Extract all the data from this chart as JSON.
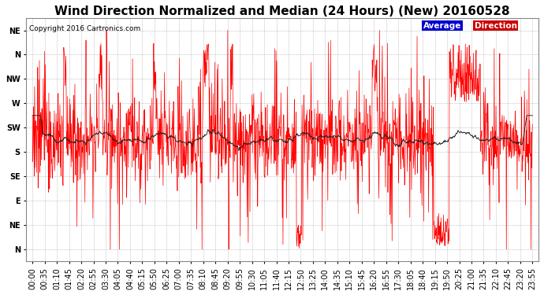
{
  "title": "Wind Direction Normalized and Median (24 Hours) (New) 20160528",
  "copyright": "Copyright 2016 Cartronics.com",
  "ytick_labels": [
    "NE",
    "N",
    "NW",
    "W",
    "SW",
    "S",
    "SE",
    "E",
    "NE",
    "N"
  ],
  "ytick_values": [
    1,
    2,
    3,
    4,
    5,
    6,
    7,
    8,
    9,
    10
  ],
  "ylim": [
    10.5,
    0.5
  ],
  "background_color": "#ffffff",
  "plot_bg_color": "#ffffff",
  "grid_color": "#aaaaaa",
  "direction_color": "#ff0000",
  "average_color": "#1a1a1a",
  "title_fontsize": 11,
  "tick_fontsize": 7,
  "x_tick_labels": [
    "00:00",
    "00:35",
    "01:10",
    "01:45",
    "02:20",
    "02:55",
    "03:30",
    "04:05",
    "04:40",
    "05:15",
    "05:50",
    "06:25",
    "07:00",
    "07:35",
    "08:10",
    "08:45",
    "09:20",
    "09:55",
    "10:30",
    "11:05",
    "11:40",
    "12:15",
    "12:50",
    "13:25",
    "14:00",
    "14:35",
    "15:10",
    "15:45",
    "16:20",
    "16:55",
    "17:30",
    "18:05",
    "18:40",
    "19:15",
    "19:50",
    "20:25",
    "21:00",
    "21:35",
    "22:10",
    "22:45",
    "23:20",
    "23:55"
  ]
}
